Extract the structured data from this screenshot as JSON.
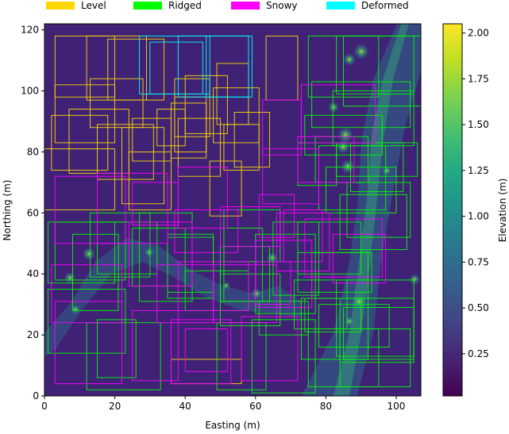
{
  "chart_data": {
    "type": "heatmap",
    "title": "",
    "xlabel": "Easting (m)",
    "ylabel": "Northing (m)",
    "xlim": [
      0,
      107
    ],
    "ylim": [
      0,
      122
    ],
    "x_ticks": [
      0,
      20,
      40,
      60,
      80,
      100
    ],
    "y_ticks": [
      0,
      20,
      40,
      60,
      80,
      100,
      120
    ],
    "grid": false,
    "colormap": "viridis",
    "colorbar": {
      "label": "Elevation (m)",
      "min": 0.02,
      "max": 2.05,
      "ticks": [
        0.25,
        0.5,
        0.75,
        1.0,
        1.25,
        1.5,
        1.75,
        2.0
      ],
      "tick_labels": [
        "0.25",
        "0.50",
        "0.75",
        "1.00",
        "1.25",
        "1.50",
        "1.75",
        "2.00"
      ]
    },
    "legend": {
      "placement": "top, above plot",
      "entries": [
        {
          "label": "Level",
          "color": "#ffd700"
        },
        {
          "label": "Ridged",
          "color": "#00ff00"
        },
        {
          "label": "Snowy",
          "color": "#ff00ff"
        },
        {
          "label": "Deformed",
          "color": "#00ffff"
        }
      ]
    },
    "series": [
      {
        "name": "Level",
        "boxes": [
          [
            3,
            98,
            20,
            118
          ],
          [
            12,
            97,
            29,
            118
          ],
          [
            3,
            83,
            20,
            102
          ],
          [
            13,
            88,
            28,
            104
          ],
          [
            2,
            74,
            18,
            92
          ],
          [
            7,
            73,
            24,
            94
          ],
          [
            0,
            61,
            20,
            81
          ],
          [
            15,
            71,
            31,
            89
          ],
          [
            25,
            77,
            36,
            91
          ],
          [
            24,
            61,
            36,
            80
          ],
          [
            37,
            80,
            46,
            98
          ],
          [
            37,
            85,
            47,
            104
          ],
          [
            38,
            72,
            50,
            91
          ],
          [
            49,
            89,
            58,
            109
          ],
          [
            48,
            83,
            61,
            101
          ],
          [
            47,
            59,
            56,
            77
          ],
          [
            51,
            74,
            61,
            89
          ],
          [
            54,
            75,
            64,
            93
          ],
          [
            63,
            97,
            72,
            118
          ],
          [
            40,
            86,
            52,
            105
          ],
          [
            18,
            97,
            34,
            117
          ],
          [
            36,
            78,
            46,
            96
          ],
          [
            32,
            82,
            40,
            94
          ],
          [
            22,
            63,
            34,
            88
          ],
          [
            36,
            4,
            56,
            12
          ]
        ]
      },
      {
        "name": "Ridged",
        "boxes": [
          [
            75,
            98,
            95,
            118
          ],
          [
            83,
            99,
            105,
            118
          ],
          [
            76,
            88,
            104,
            103
          ],
          [
            82,
            82,
            105,
            100
          ],
          [
            74,
            79,
            96,
            92
          ],
          [
            77,
            70,
            92,
            85
          ],
          [
            80,
            60,
            100,
            75
          ],
          [
            87,
            67,
            102,
            83
          ],
          [
            83,
            72,
            106,
            83
          ],
          [
            78,
            61,
            97,
            82
          ],
          [
            86,
            52,
            104,
            70
          ],
          [
            84,
            48,
            103,
            66
          ],
          [
            3,
            38,
            23,
            57
          ],
          [
            1,
            37,
            20,
            57
          ],
          [
            8,
            28,
            21,
            53
          ],
          [
            13,
            39,
            30,
            60
          ],
          [
            15,
            40,
            32,
            57
          ],
          [
            27,
            31,
            42,
            60
          ],
          [
            25,
            36,
            40,
            55
          ],
          [
            35,
            32,
            48,
            53
          ],
          [
            35,
            34,
            48,
            52
          ],
          [
            50,
            31,
            62,
            55
          ],
          [
            51,
            31,
            64,
            49
          ],
          [
            60,
            27,
            77,
            53
          ],
          [
            65,
            33,
            78,
            57
          ],
          [
            72,
            40,
            90,
            57
          ],
          [
            72,
            34,
            93,
            47
          ],
          [
            76,
            32,
            92,
            47
          ],
          [
            74,
            21,
            90,
            32
          ],
          [
            78,
            16,
            98,
            30
          ],
          [
            85,
            12,
            105,
            29
          ],
          [
            84,
            11,
            105,
            32
          ],
          [
            73,
            12,
            92,
            32
          ],
          [
            1,
            14,
            23,
            35
          ],
          [
            15,
            6,
            26,
            25
          ],
          [
            12,
            2,
            33,
            24
          ],
          [
            40,
            28,
            58,
            41
          ],
          [
            50,
            23,
            67,
            40
          ],
          [
            71,
            22,
            86,
            38
          ],
          [
            84,
            3,
            104,
            22
          ],
          [
            75,
            3,
            95,
            22
          ],
          [
            59,
            1,
            77,
            25
          ],
          [
            49,
            2,
            63,
            24
          ],
          [
            83,
            13,
            105,
            38
          ],
          [
            61,
            20,
            75,
            31
          ],
          [
            72,
            69,
            83,
            83
          ],
          [
            85,
            95,
            107,
            118
          ],
          [
            51,
            44,
            67,
            61
          ]
        ]
      },
      {
        "name": "Snowy",
        "boxes": [
          [
            62,
            79,
            73,
            97
          ],
          [
            73,
            83,
            94,
            102
          ],
          [
            62,
            63,
            78,
            81
          ],
          [
            72,
            70,
            88,
            85
          ],
          [
            61,
            52,
            71,
            66
          ],
          [
            3,
            50,
            23,
            72
          ],
          [
            15,
            50,
            35,
            73
          ],
          [
            25,
            56,
            38,
            70
          ],
          [
            38,
            55,
            52,
            75
          ],
          [
            37,
            47,
            55,
            61
          ],
          [
            50,
            49,
            67,
            62
          ],
          [
            60,
            29,
            76,
            51
          ],
          [
            74,
            39,
            96,
            58
          ],
          [
            82,
            37,
            97,
            53
          ],
          [
            2,
            24,
            22,
            43
          ],
          [
            24,
            36,
            42,
            57
          ],
          [
            32,
            24,
            48,
            43
          ],
          [
            38,
            28,
            58,
            44
          ],
          [
            48,
            24,
            66,
            43
          ],
          [
            56,
            5,
            72,
            26
          ],
          [
            25,
            5,
            38,
            28
          ],
          [
            36,
            4,
            53,
            25
          ],
          [
            3,
            4,
            22,
            31
          ],
          [
            40,
            8,
            52,
            22
          ],
          [
            68,
            44,
            79,
            61
          ],
          [
            66,
            41,
            81,
            60
          ],
          [
            60,
            30,
            70,
            44
          ]
        ]
      },
      {
        "name": "Deformed",
        "boxes": [
          [
            27,
            99,
            47,
            118
          ],
          [
            38,
            98,
            58,
            118
          ],
          [
            30,
            99,
            45,
            116
          ],
          [
            46,
            98,
            59,
            118
          ]
        ]
      }
    ]
  }
}
